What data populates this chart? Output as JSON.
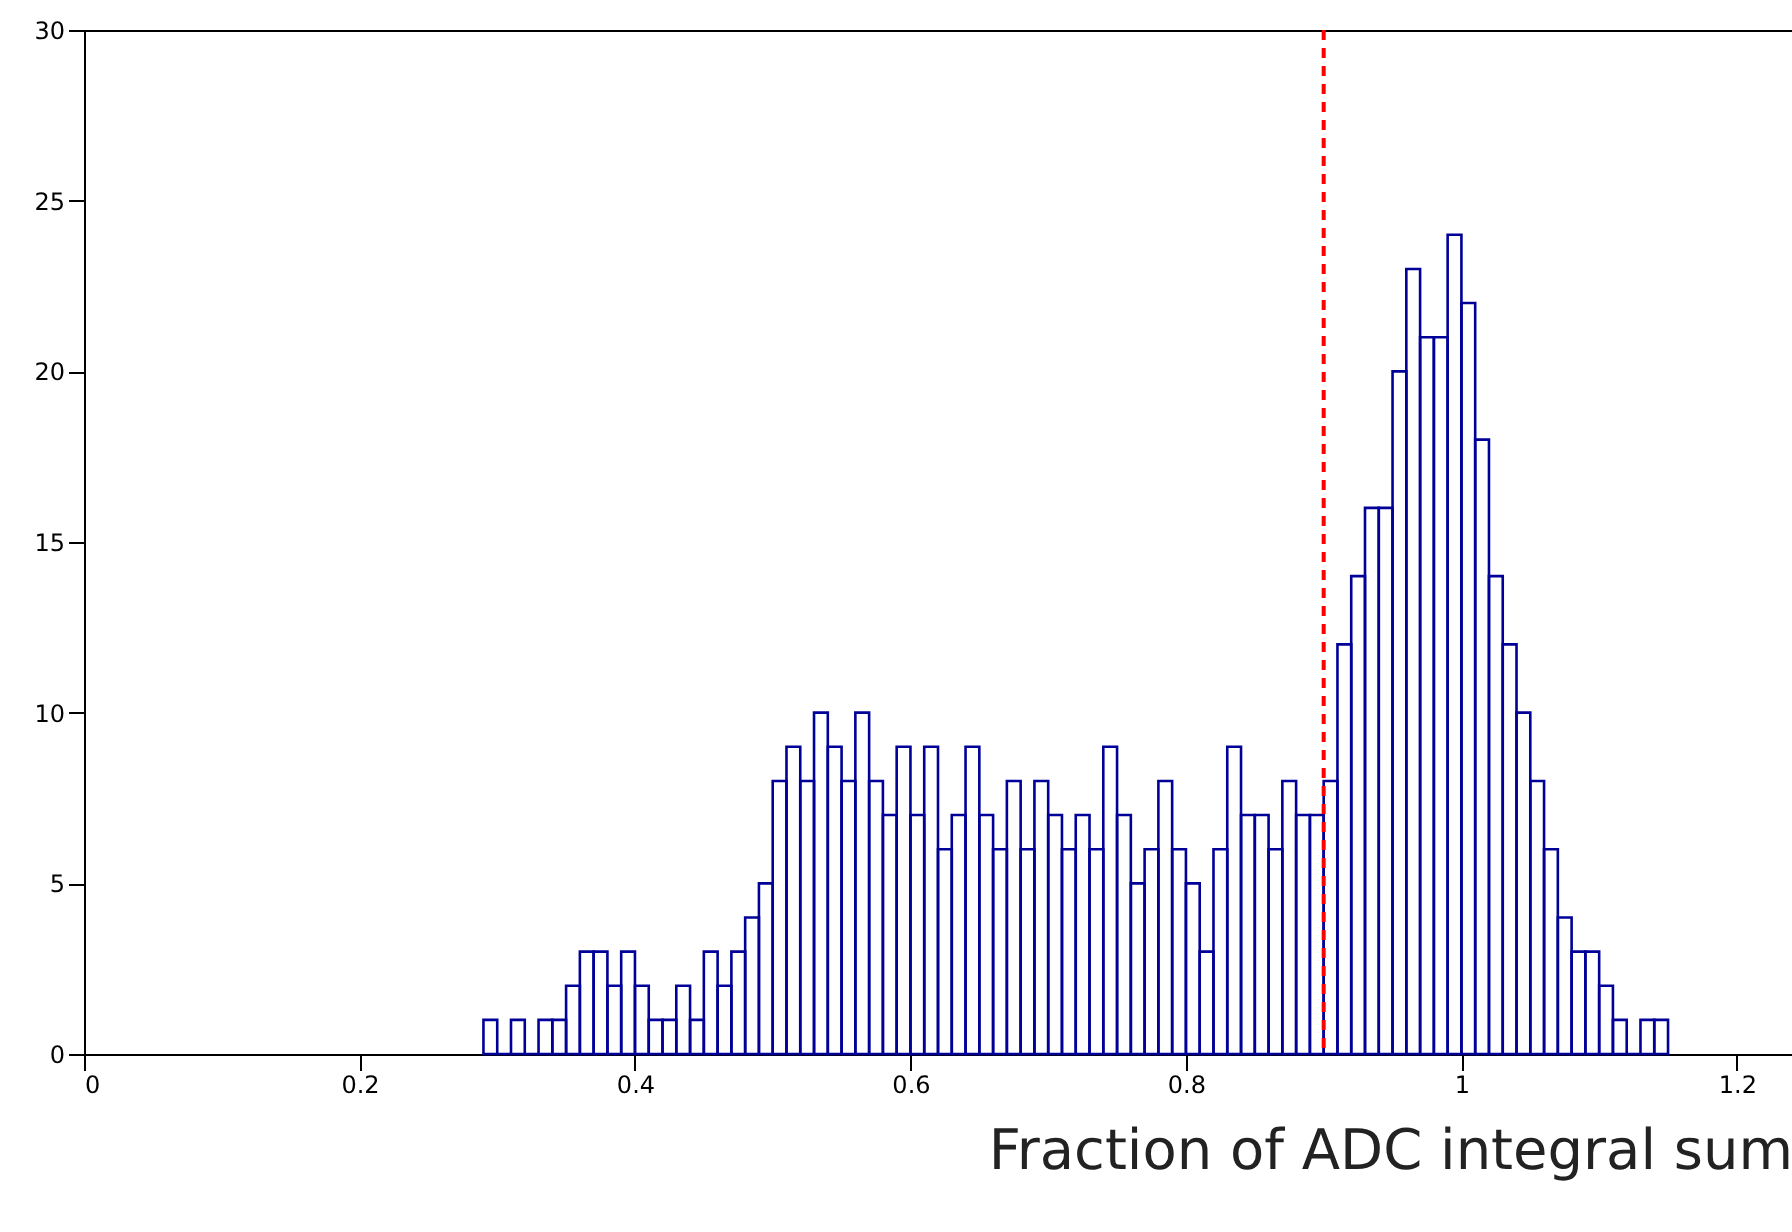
{
  "chart_data": {
    "type": "histogram",
    "xlabel": "Fraction of ADC integral sum",
    "bins": [
      0.29,
      0.3,
      0.31,
      0.32,
      0.33,
      0.34,
      0.35,
      0.36,
      0.37,
      0.38,
      0.39,
      0.4,
      0.41,
      0.42,
      0.43,
      0.44,
      0.45,
      0.46,
      0.47,
      0.48,
      0.49,
      0.5,
      0.51,
      0.52,
      0.53,
      0.54,
      0.55,
      0.56,
      0.57,
      0.58,
      0.59,
      0.6,
      0.61,
      0.62,
      0.63,
      0.64,
      0.65,
      0.66,
      0.67,
      0.68,
      0.69,
      0.7,
      0.71,
      0.72,
      0.73,
      0.74,
      0.75,
      0.76,
      0.77,
      0.78,
      0.79,
      0.8,
      0.81,
      0.82,
      0.83,
      0.84,
      0.85,
      0.86,
      0.87,
      0.88,
      0.89,
      0.9,
      0.91,
      0.92,
      0.93,
      0.94,
      0.95,
      0.96,
      0.97,
      0.98,
      0.99,
      1.0,
      1.01,
      1.02,
      1.03,
      1.04,
      1.05,
      1.06,
      1.07,
      1.08,
      1.09,
      1.1,
      1.11,
      1.12,
      1.13,
      1.14,
      1.15
    ],
    "values": [
      1,
      0,
      1,
      0,
      1,
      1,
      2,
      3,
      3,
      2,
      3,
      2,
      1,
      1,
      2,
      1,
      3,
      2,
      3,
      4,
      5,
      8,
      9,
      8,
      10,
      9,
      8,
      10,
      8,
      7,
      9,
      7,
      9,
      6,
      7,
      9,
      7,
      6,
      8,
      6,
      8,
      7,
      6,
      7,
      6,
      9,
      7,
      5,
      6,
      8,
      6,
      5,
      3,
      6,
      9,
      7,
      7,
      6,
      8,
      7,
      7,
      8,
      12,
      14,
      16,
      16,
      20,
      23,
      21,
      21,
      24,
      22,
      18,
      14,
      12,
      10,
      8,
      6,
      4,
      3,
      3,
      2,
      1,
      0,
      1,
      1
    ],
    "color": "#000099",
    "xlim": [
      0,
      1.24
    ],
    "xticks": [
      0,
      {
        "value": 0.2,
        "label": "0.2"
      },
      {
        "value": 0.4,
        "label": "0.4"
      },
      {
        "value": 0.6,
        "label": "0.6"
      },
      {
        "value": 0.8,
        "label": "0.8"
      },
      1,
      {
        "value": 1.2,
        "label": "1.2"
      }
    ],
    "ylim": [
      0,
      30
    ],
    "yticks": [
      0,
      5,
      10,
      15,
      20,
      25,
      30
    ],
    "ref_lines": [
      {
        "axis": "x",
        "value": 0.9,
        "color": "#ff0000",
        "line_style": "dashed"
      }
    ],
    "grid": false
  }
}
